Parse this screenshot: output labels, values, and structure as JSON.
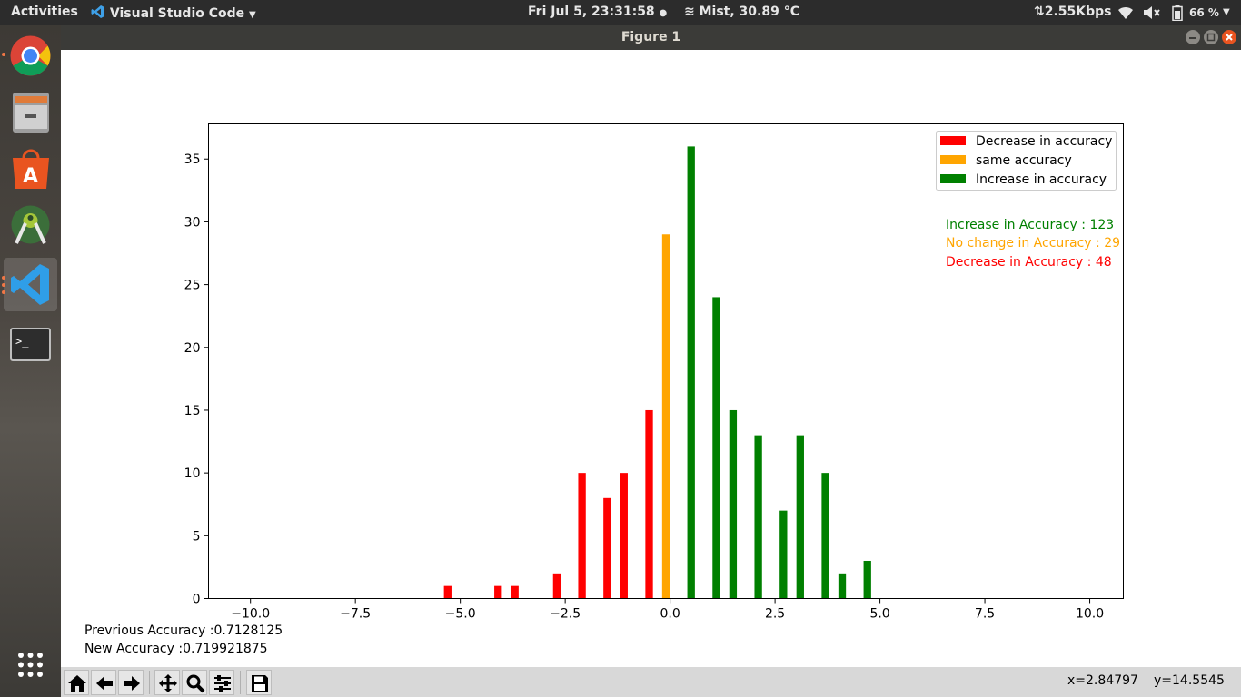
{
  "topbar": {
    "activities": "Activities",
    "app_name": "Visual Studio Code",
    "clock": "Fri Jul  5, 23:31:58",
    "weather": "Mist, 30.89 °C",
    "network_speed": "⇅2.55Kbps",
    "battery": "66 %"
  },
  "dock": {
    "items": [
      {
        "name": "chrome-icon"
      },
      {
        "name": "files-icon"
      },
      {
        "name": "software-center-icon"
      },
      {
        "name": "android-studio-icon"
      },
      {
        "name": "vscode-icon"
      },
      {
        "name": "terminal-icon"
      },
      {
        "name": "app-grid-icon"
      }
    ]
  },
  "window": {
    "title": "Figure 1"
  },
  "figure_text": {
    "previous_accuracy": "Prevrious Accuracy :0.7128125",
    "new_accuracy": "New Accuracy :0.719921875"
  },
  "stats": {
    "increase": {
      "text": "Increase in Accuracy : 123",
      "color": "#008000"
    },
    "nochange": {
      "text": "No change in Accuracy : 29",
      "color": "#ffa500"
    },
    "decrease": {
      "text": "Decrease in Accuracy : 48",
      "color": "#ff0000"
    }
  },
  "toolbar": {
    "buttons": [
      "home-icon",
      "back-arrow-icon",
      "forward-arrow-icon",
      "pan-icon",
      "zoom-icon",
      "configure-subplots-icon",
      "save-icon"
    ],
    "x_readout": "x=2.84797",
    "y_readout": "y=14.5545"
  },
  "chart_data": {
    "type": "bar",
    "title": "",
    "xlabel": "",
    "ylabel": "",
    "xlim": [
      -11.0,
      10.8
    ],
    "ylim": [
      0,
      37.8
    ],
    "xticks": [
      -10.0,
      -7.5,
      -5.0,
      -2.5,
      0.0,
      2.5,
      5.0,
      7.5,
      10.0
    ],
    "xtick_labels": [
      "−10.0",
      "−7.5",
      "−5.0",
      "−2.5",
      "0.0",
      "2.5",
      "5.0",
      "7.5",
      "10.0"
    ],
    "yticks": [
      0,
      5,
      10,
      15,
      20,
      25,
      30,
      35
    ],
    "legend_position": "top-right",
    "series": [
      {
        "name": "Decrease in accuracy",
        "color": "#ff0000",
        "x": [
          -5.3,
          -4.1,
          -3.7,
          -2.7,
          -2.1,
          -1.5,
          -1.1,
          -0.5
        ],
        "values": [
          1,
          1,
          1,
          2,
          10,
          8,
          10,
          15
        ]
      },
      {
        "name": "same accuracy",
        "color": "#ffa500",
        "x": [
          -0.1
        ],
        "values": [
          29
        ]
      },
      {
        "name": "Increase in accuracy",
        "color": "#008000",
        "x": [
          0.5,
          1.1,
          1.5,
          2.1,
          2.7,
          3.1,
          3.7,
          4.1,
          4.7
        ],
        "values": [
          36,
          24,
          15,
          13,
          7,
          13,
          10,
          2,
          3
        ]
      }
    ]
  }
}
